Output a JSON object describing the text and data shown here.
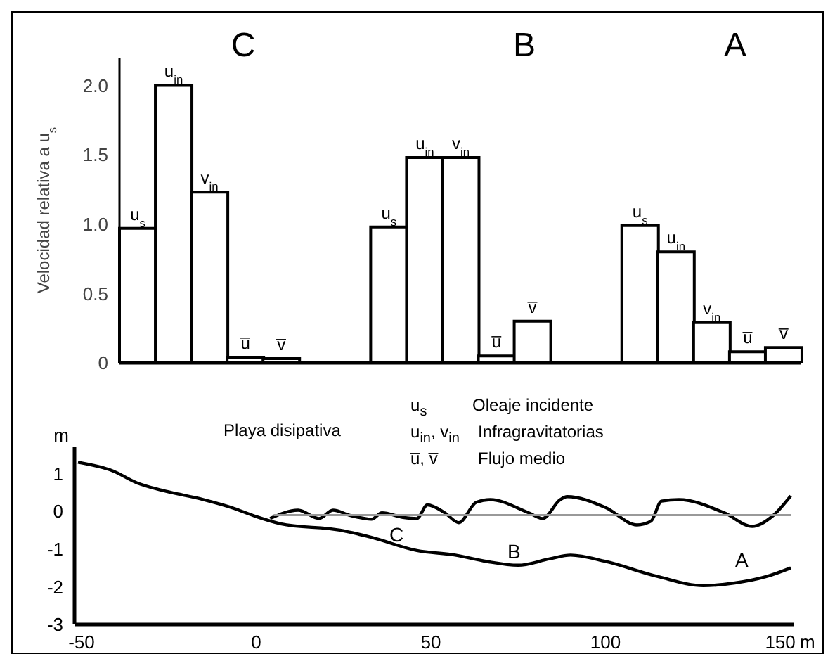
{
  "chart_data": [
    {
      "type": "bar",
      "ylabel": "Velocidad relativa a u$_{s}$",
      "categories": [
        "u$_{s}$",
        "u$_{in}$",
        "v$_{in}$",
        "u̅",
        "v̅",
        null,
        null,
        "u$_{s}$",
        "u$_{in}$",
        "v$_{in}$",
        "u̅",
        "v̅",
        null,
        null,
        "u$_{s}$",
        "u$_{in}$",
        "v$_{in}$",
        "u̅",
        "v̅"
      ],
      "values": [
        0.97,
        2.0,
        1.23,
        0.04,
        0.03,
        null,
        null,
        0.98,
        1.48,
        1.48,
        0.05,
        0.3,
        null,
        null,
        0.99,
        0.8,
        0.29,
        0.08,
        0.11
      ],
      "color": "#ffffff",
      "ylim": [
        0,
        2.2
      ],
      "yticks": [
        0,
        0.5,
        {
          "value": 1,
          "label": "1.0"
        },
        1.5,
        {
          "value": 2,
          "label": "2.0"
        }
      ],
      "tick_labels": "y",
      "annotations": [
        "C",
        "B",
        "A"
      ]
    },
    {
      "type": "line",
      "xlabel": "m",
      "ylabel": "m",
      "xlim": [
        -52,
        154
      ],
      "xticks": [
        -50,
        0,
        50,
        100,
        150
      ],
      "ylim": [
        -3,
        1.7
      ],
      "yticks": [
        -3,
        -2,
        -1,
        0,
        1
      ],
      "marker": "none",
      "series": [
        {
          "color": "#000000",
          "x": [
            -51,
            -41,
            -34,
            -27,
            -15,
            -7,
            0,
            7,
            24,
            33,
            46,
            57,
            66,
            75,
            84,
            90,
            100,
            115,
            128,
            137,
            146,
            153
          ],
          "values": [
            1.3,
            1.07,
            0.75,
            0.56,
            0.31,
            0.1,
            -0.14,
            -0.33,
            -0.5,
            -0.69,
            -1.04,
            -1.16,
            -1.33,
            -1.43,
            -1.26,
            -1.16,
            -1.33,
            -1.73,
            -1.97,
            -1.9,
            -1.73,
            -1.5
          ]
        },
        {
          "color": "#000000",
          "x": [
            4,
            12,
            18,
            22,
            27,
            33,
            36,
            42,
            46,
            49,
            54,
            58,
            63,
            67,
            78,
            82,
            87,
            89,
            100,
            109,
            113,
            116,
            121,
            134,
            142,
            148,
            153
          ],
          "values": [
            -0.19,
            0.03,
            -0.19,
            0.03,
            -0.11,
            -0.21,
            -0.04,
            -0.16,
            -0.19,
            0.17,
            -0.04,
            -0.3,
            0.24,
            0.31,
            -0.04,
            -0.19,
            0.31,
            0.39,
            0.1,
            -0.36,
            -0.26,
            0.27,
            0.31,
            -0.04,
            -0.4,
            -0.11,
            0.41
          ]
        },
        {
          "color": "#999999",
          "x": [
            5,
            153
          ],
          "values": [
            -0.1,
            -0.1
          ]
        }
      ],
      "annotations": [
        "C",
        "B",
        "A",
        "Playa disipativa",
        "u$_{s}$",
        "Oleaje incidente",
        "u$_{in}$, v$_{in}$",
        "Infragravitatorias",
        "u̅, v̅",
        "Flujo medio"
      ]
    }
  ]
}
